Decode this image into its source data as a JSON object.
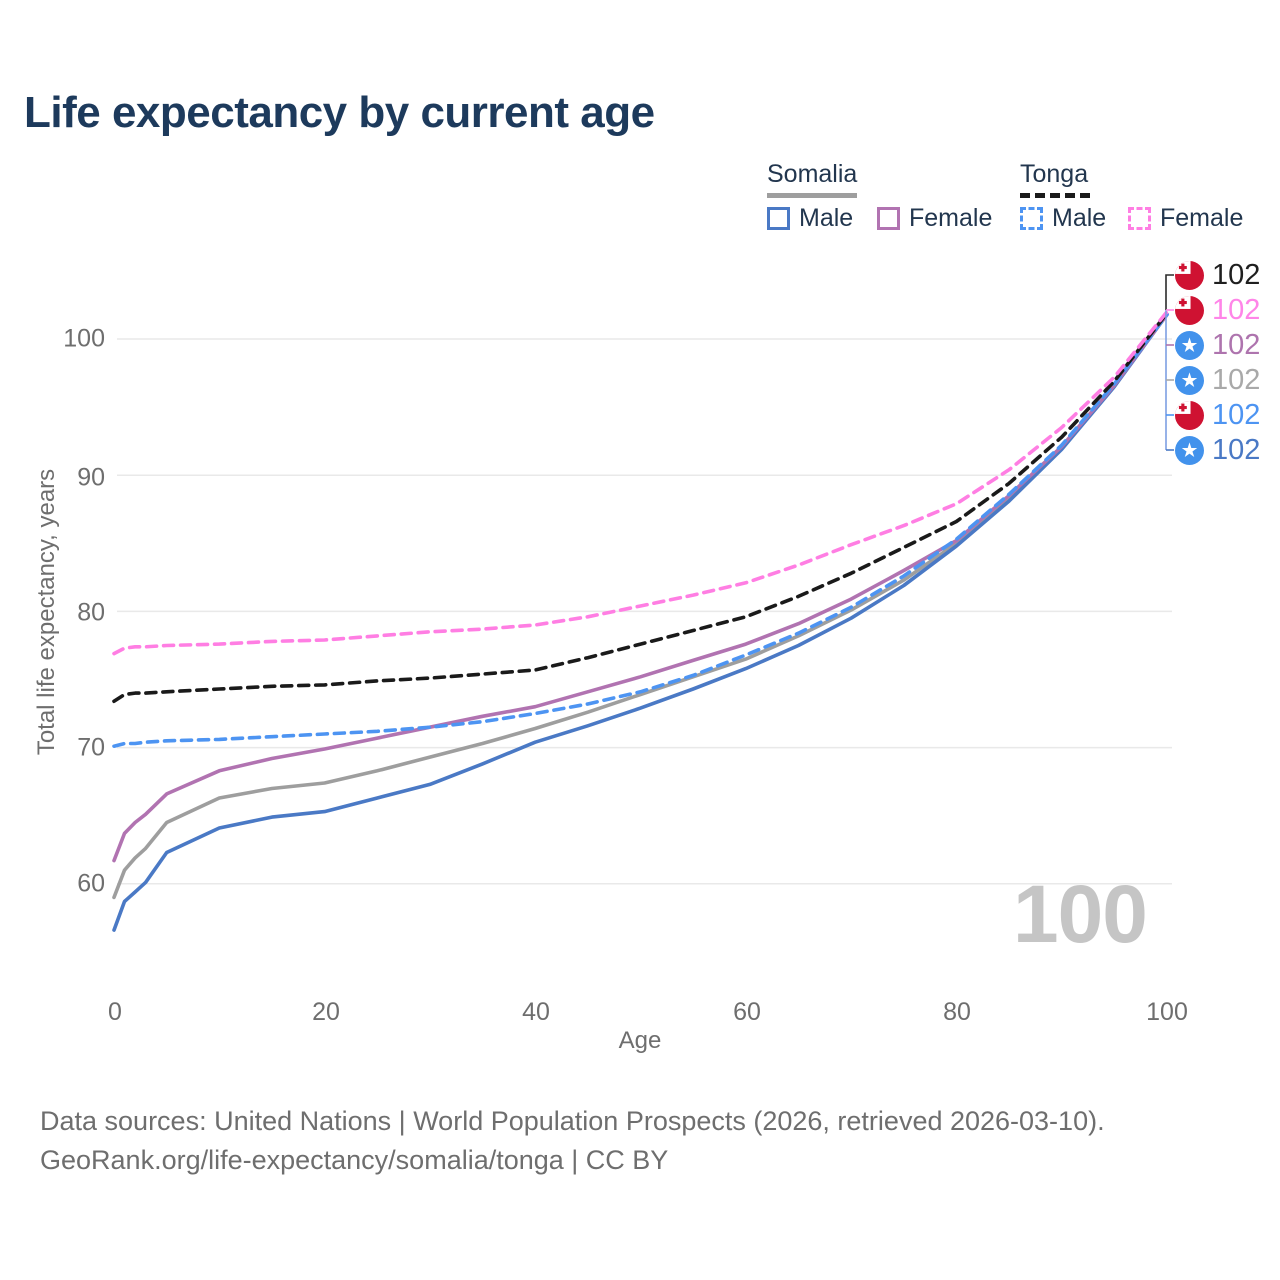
{
  "title": "Life expectancy by current age",
  "legend": {
    "groups": [
      {
        "name": "Somalia",
        "rule_style": "solid",
        "rule_color": "#9e9e9e",
        "items": [
          {
            "label": "Male",
            "color": "#4a79c5"
          },
          {
            "label": "Female",
            "color": "#b173b1"
          }
        ]
      },
      {
        "name": "Tonga",
        "rule_style": "dashed",
        "rule_color": "#1a1a1a",
        "items": [
          {
            "label": "Male",
            "color": "#4d94f2"
          },
          {
            "label": "Female",
            "color": "#ff7ee3"
          }
        ]
      }
    ]
  },
  "chart_data": {
    "type": "line",
    "title": "Life expectancy by current age",
    "xlabel": "Age",
    "ylabel": "Total life expectancy, years",
    "xlim": [
      0,
      100
    ],
    "ylim": [
      56,
      103
    ],
    "x_ticks": [
      0,
      20,
      40,
      60,
      80,
      100
    ],
    "y_ticks": [
      60,
      70,
      80,
      90,
      100
    ],
    "grid": "horizontal",
    "x": [
      0,
      1,
      2,
      3,
      5,
      10,
      15,
      20,
      25,
      30,
      35,
      40,
      45,
      50,
      55,
      60,
      65,
      70,
      75,
      80,
      85,
      90,
      95,
      100
    ],
    "series": [
      {
        "name": "Somalia Both sexes",
        "country": "Somalia",
        "sex": "Both",
        "line": "solid",
        "color": "#9e9e9e",
        "values": [
          59.0,
          61.0,
          61.9,
          62.6,
          64.5,
          66.3,
          67.0,
          67.4,
          68.3,
          69.3,
          70.3,
          71.4,
          72.6,
          73.9,
          75.2,
          76.5,
          78.2,
          80.1,
          82.3,
          85.0,
          88.3,
          92.0,
          96.6,
          101.8
        ]
      },
      {
        "name": "Somalia Male",
        "country": "Somalia",
        "sex": "Male",
        "line": "solid",
        "color": "#4a79c5",
        "values": [
          56.6,
          58.7,
          59.4,
          60.1,
          62.3,
          64.1,
          64.9,
          65.3,
          66.3,
          67.3,
          68.8,
          70.4,
          71.6,
          72.9,
          74.3,
          75.8,
          77.5,
          79.5,
          81.9,
          84.8,
          88.1,
          91.9,
          96.5,
          101.8
        ]
      },
      {
        "name": "Somalia Female",
        "country": "Somalia",
        "sex": "Female",
        "line": "solid",
        "color": "#b173b1",
        "values": [
          61.7,
          63.7,
          64.5,
          65.1,
          66.6,
          68.3,
          69.2,
          69.9,
          70.7,
          71.5,
          72.3,
          73.0,
          74.1,
          75.2,
          76.4,
          77.6,
          79.1,
          80.9,
          83.0,
          85.2,
          88.5,
          92.1,
          96.6,
          101.8
        ]
      },
      {
        "name": "Tonga Male",
        "country": "Tonga",
        "sex": "Male",
        "line": "dashed",
        "color": "#4d94f2",
        "values": [
          70.1,
          70.3,
          70.3,
          70.4,
          70.5,
          70.6,
          70.8,
          71.0,
          71.2,
          71.5,
          71.9,
          72.5,
          73.2,
          74.1,
          75.3,
          76.8,
          78.4,
          80.3,
          82.6,
          85.3,
          88.6,
          92.2,
          96.7,
          101.8
        ]
      },
      {
        "name": "Tonga Both sexes",
        "country": "Tonga",
        "sex": "Both",
        "line": "dashed",
        "color": "#1a1a1a",
        "values": [
          73.4,
          73.9,
          74.0,
          74.0,
          74.1,
          74.3,
          74.5,
          74.6,
          74.9,
          75.1,
          75.4,
          75.7,
          76.6,
          77.6,
          78.6,
          79.6,
          81.1,
          82.8,
          84.7,
          86.6,
          89.4,
          92.8,
          96.9,
          101.9
        ]
      },
      {
        "name": "Tonga Female",
        "country": "Tonga",
        "sex": "Female",
        "line": "dashed",
        "color": "#ff7ee3",
        "values": [
          76.9,
          77.3,
          77.4,
          77.4,
          77.5,
          77.6,
          77.8,
          77.9,
          78.2,
          78.5,
          78.7,
          79.0,
          79.6,
          80.4,
          81.2,
          82.1,
          83.4,
          84.9,
          86.3,
          87.9,
          90.4,
          93.5,
          97.2,
          102.0
        ]
      }
    ],
    "end_labels": [
      {
        "flag": "tonga",
        "series": "Tonga Both sexes",
        "value": 102,
        "color": "#1f1f1f"
      },
      {
        "flag": "tonga",
        "series": "Tonga Female",
        "value": 102,
        "color": "#ff85e8"
      },
      {
        "flag": "somalia",
        "series": "Somalia Female",
        "value": 102,
        "color": "#ae74ae"
      },
      {
        "flag": "somalia",
        "series": "Somalia Both sexes",
        "value": 102,
        "color": "#a9a9a9"
      },
      {
        "flag": "tonga",
        "series": "Tonga Male",
        "value": 102,
        "color": "#4d94f2"
      },
      {
        "flag": "somalia",
        "series": "Somalia Male",
        "value": 102,
        "color": "#4a79c5"
      }
    ],
    "watermark": "100",
    "colors": {
      "title": "#1d3a5c",
      "axis_text": "#6e6e6e",
      "grid": "#e9e9e9",
      "watermark": "#c5c5c5",
      "connector_top": "#2b2b2b",
      "connector_bottom": "#7d9fe3"
    },
    "flags": {
      "tonga": {
        "bg": "#cf1232",
        "canton": "#ffffff",
        "cross": "#cf1232"
      },
      "somalia": {
        "bg": "#4292ec",
        "star": "#ffffff"
      }
    }
  },
  "footer": {
    "line1": "Data sources: United Nations | World Population Prospects (2026, retrieved 2026-03-10).",
    "line2": "GeoRank.org/life-expectancy/somalia/tonga | CC BY"
  }
}
